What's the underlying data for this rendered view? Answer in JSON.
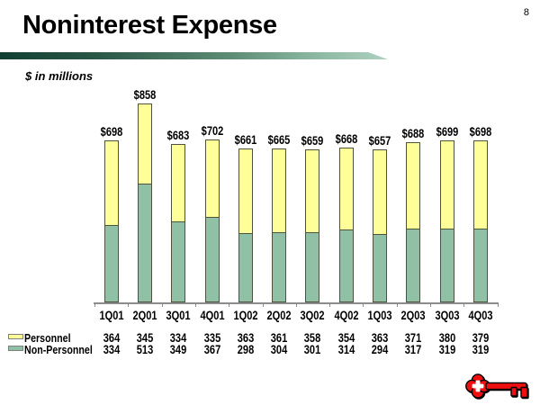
{
  "page_number": "8",
  "title": "Noninterest Expense",
  "subtitle": "$ in millions",
  "legend": {
    "personnel": "Personnel",
    "non_personnel": "Non-Personnel"
  },
  "colors": {
    "personnel_fill": "#FFFF99",
    "non_personnel_fill": "#90C0A6",
    "bar_border": "#4f523d",
    "axis": "#8c8c8c",
    "banner_dark": "#113F33",
    "banner_light": "#AED0BF",
    "logo_red": "#EE1010"
  },
  "icons": {
    "logo": "red-key-logo"
  },
  "chart_data": {
    "type": "bar",
    "stacked": true,
    "title": "Noninterest Expense",
    "units_note": "$ in millions",
    "categories": [
      "1Q01",
      "2Q01",
      "3Q01",
      "4Q01",
      "1Q02",
      "2Q02",
      "3Q02",
      "4Q02",
      "1Q03",
      "2Q03",
      "3Q03",
      "4Q03"
    ],
    "series": [
      {
        "name": "Personnel",
        "color": "#FFFF99",
        "values": [
          364,
          345,
          334,
          335,
          363,
          361,
          358,
          354,
          363,
          371,
          380,
          379
        ]
      },
      {
        "name": "Non-Personnel",
        "color": "#90C0A6",
        "values": [
          334,
          513,
          349,
          367,
          298,
          304,
          301,
          314,
          294,
          317,
          319,
          319
        ]
      }
    ],
    "stack_order_bottom_to_top": [
      "Non-Personnel",
      "Personnel"
    ],
    "totals": [
      698,
      858,
      683,
      702,
      661,
      665,
      659,
      668,
      657,
      688,
      699,
      698
    ],
    "total_label_prefix": "$",
    "ylim": [
      0,
      900
    ],
    "grid": false,
    "y_axis_shown": false,
    "legend_position": "bottom-left",
    "value_table": true
  }
}
